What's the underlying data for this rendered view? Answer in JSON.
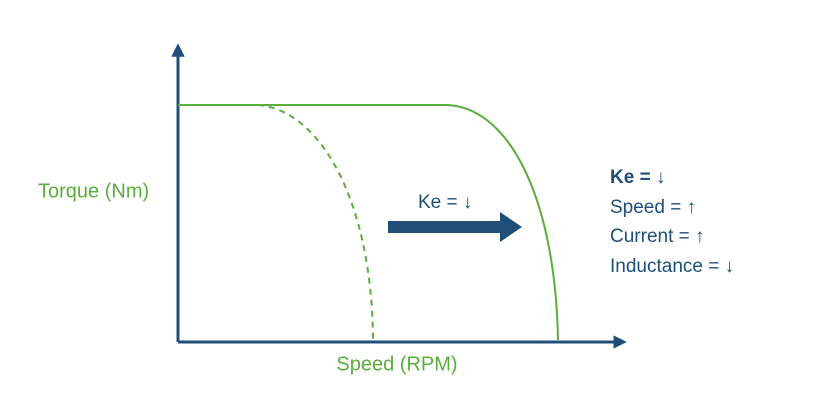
{
  "axes": {
    "y_label": "Torque (Nm)",
    "x_label": "Speed (RPM)"
  },
  "arrow_label": "Ke = ↓",
  "effects": [
    "Ke = ↓",
    "Speed = ↑",
    "Current = ↑",
    "Inductance = ↓"
  ]
}
